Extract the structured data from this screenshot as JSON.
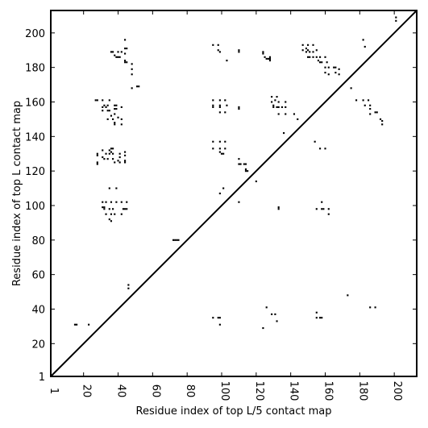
{
  "chart_data": {
    "type": "scatter",
    "title": "",
    "xlabel": "Residue index of top L/5 contact map",
    "ylabel": "Residue index of top L contact map",
    "xlim": [
      1,
      213
    ],
    "ylim": [
      1,
      213
    ],
    "xticks": [
      1,
      20,
      40,
      60,
      80,
      100,
      120,
      140,
      160,
      180,
      200
    ],
    "yticks": [
      1,
      20,
      40,
      60,
      80,
      100,
      120,
      140,
      160,
      180,
      200
    ],
    "xtick_labels": [
      "1",
      "20",
      "40",
      "60",
      "80",
      "100",
      "120",
      "140",
      "160",
      "180",
      "200"
    ],
    "ytick_labels": [
      "1",
      "20",
      "40",
      "60",
      "80",
      "100",
      "120",
      "140",
      "160",
      "180",
      "200"
    ],
    "grid": false,
    "legend": "none",
    "diagonal": {
      "from": [
        1,
        1
      ],
      "to": [
        213,
        213
      ]
    },
    "marker_color": "#000000",
    "series": [
      {
        "points": [
          [
            15,
            31
          ],
          [
            16,
            31
          ],
          [
            23,
            31
          ],
          [
            72,
            80
          ],
          [
            73,
            80
          ],
          [
            74,
            80
          ],
          [
            75,
            80
          ],
          [
            46,
            52
          ],
          [
            46,
            54
          ],
          [
            124,
            29
          ],
          [
            126,
            41
          ],
          [
            129,
            37
          ],
          [
            131,
            37
          ],
          [
            132,
            33
          ],
          [
            95,
            35
          ],
          [
            98,
            35
          ],
          [
            99,
            35
          ],
          [
            99,
            31
          ],
          [
            155,
            38
          ],
          [
            155,
            35
          ],
          [
            157,
            35
          ],
          [
            158,
            35
          ],
          [
            173,
            48
          ],
          [
            186,
            41
          ],
          [
            189,
            41
          ],
          [
            101,
            110
          ],
          [
            99,
            107
          ],
          [
            110,
            102
          ],
          [
            120,
            114
          ],
          [
            133,
            98
          ],
          [
            133,
            99
          ],
          [
            35,
            110
          ],
          [
            39,
            110
          ],
          [
            31,
            99
          ],
          [
            32,
            99
          ],
          [
            32,
            98
          ],
          [
            35,
            98
          ],
          [
            37,
            98
          ],
          [
            39,
            102
          ],
          [
            42,
            102
          ],
          [
            43,
            98
          ],
          [
            44,
            98
          ],
          [
            45,
            98
          ],
          [
            45,
            102
          ],
          [
            33,
            95
          ],
          [
            36,
            95
          ],
          [
            38,
            95
          ],
          [
            42,
            95
          ],
          [
            35,
            92
          ],
          [
            36,
            91
          ],
          [
            31,
            102
          ],
          [
            33,
            102
          ],
          [
            36,
            102
          ],
          [
            28,
            130
          ],
          [
            28,
            129
          ],
          [
            28,
            125
          ],
          [
            28,
            124
          ],
          [
            31,
            132
          ],
          [
            31,
            128
          ],
          [
            32,
            127
          ],
          [
            33,
            130
          ],
          [
            34,
            127
          ],
          [
            35,
            132
          ],
          [
            35,
            130
          ],
          [
            36,
            133
          ],
          [
            36,
            131
          ],
          [
            37,
            133
          ],
          [
            37,
            130
          ],
          [
            37,
            127
          ],
          [
            38,
            125
          ],
          [
            40,
            126
          ],
          [
            41,
            125
          ],
          [
            41,
            128
          ],
          [
            41,
            130
          ],
          [
            44,
            131
          ],
          [
            44,
            129
          ],
          [
            44,
            126
          ],
          [
            44,
            125
          ],
          [
            27,
            161
          ],
          [
            28,
            161
          ],
          [
            31,
            161
          ],
          [
            31,
            157
          ],
          [
            31,
            155
          ],
          [
            32,
            158
          ],
          [
            33,
            157
          ],
          [
            34,
            158
          ],
          [
            34,
            155
          ],
          [
            34,
            150
          ],
          [
            35,
            161
          ],
          [
            35,
            155
          ],
          [
            36,
            152
          ],
          [
            37,
            150
          ],
          [
            38,
            158
          ],
          [
            38,
            156
          ],
          [
            38,
            153
          ],
          [
            38,
            148
          ],
          [
            39,
            158
          ],
          [
            39,
            156
          ],
          [
            40,
            151
          ],
          [
            42,
            157
          ],
          [
            42,
            150
          ],
          [
            42,
            147
          ],
          [
            38,
            147
          ],
          [
            36,
            189
          ],
          [
            37,
            189
          ],
          [
            38,
            187
          ],
          [
            39,
            186
          ],
          [
            40,
            189
          ],
          [
            40,
            186
          ],
          [
            41,
            186
          ],
          [
            42,
            189
          ],
          [
            44,
            196
          ],
          [
            44,
            191
          ],
          [
            44,
            188
          ],
          [
            44,
            184
          ],
          [
            44,
            183
          ],
          [
            45,
            183
          ],
          [
            45,
            191
          ],
          [
            48,
            182
          ],
          [
            48,
            179
          ],
          [
            48,
            176
          ],
          [
            48,
            168
          ],
          [
            51,
            169
          ],
          [
            52,
            169
          ],
          [
            95,
            193
          ],
          [
            98,
            193
          ],
          [
            98,
            190
          ],
          [
            99,
            189
          ],
          [
            103,
            184
          ],
          [
            110,
            190
          ],
          [
            110,
            189
          ],
          [
            95,
            137
          ],
          [
            95,
            133
          ],
          [
            99,
            137
          ],
          [
            99,
            133
          ],
          [
            99,
            131
          ],
          [
            100,
            130
          ],
          [
            101,
            130
          ],
          [
            102,
            133
          ],
          [
            102,
            137
          ],
          [
            95,
            161
          ],
          [
            95,
            158
          ],
          [
            95,
            157
          ],
          [
            99,
            161
          ],
          [
            99,
            158
          ],
          [
            99,
            157
          ],
          [
            99,
            154
          ],
          [
            102,
            161
          ],
          [
            103,
            158
          ],
          [
            102,
            154
          ],
          [
            110,
            157
          ],
          [
            110,
            156
          ],
          [
            110,
            127
          ],
          [
            110,
            124
          ],
          [
            111,
            124
          ],
          [
            113,
            124
          ],
          [
            114,
            124
          ],
          [
            114,
            121
          ],
          [
            114,
            120
          ],
          [
            115,
            120
          ],
          [
            124,
            189
          ],
          [
            124,
            188
          ],
          [
            125,
            186
          ],
          [
            126,
            185
          ],
          [
            127,
            185
          ],
          [
            128,
            186
          ],
          [
            128,
            185
          ],
          [
            128,
            184
          ],
          [
            129,
            163
          ],
          [
            129,
            160
          ],
          [
            130,
            158
          ],
          [
            130,
            157
          ],
          [
            131,
            161
          ],
          [
            132,
            163
          ],
          [
            132,
            157
          ],
          [
            133,
            160
          ],
          [
            133,
            157
          ],
          [
            133,
            153
          ],
          [
            135,
            157
          ],
          [
            137,
            160
          ],
          [
            137,
            157
          ],
          [
            137,
            153
          ],
          [
            136,
            142
          ],
          [
            142,
            153
          ],
          [
            144,
            150
          ],
          [
            147,
            193
          ],
          [
            147,
            190
          ],
          [
            149,
            191
          ],
          [
            149,
            189
          ],
          [
            150,
            193
          ],
          [
            150,
            190
          ],
          [
            150,
            186
          ],
          [
            151,
            189
          ],
          [
            151,
            186
          ],
          [
            153,
            193
          ],
          [
            153,
            189
          ],
          [
            153,
            186
          ],
          [
            155,
            190
          ],
          [
            155,
            186
          ],
          [
            156,
            184
          ],
          [
            157,
            183
          ],
          [
            157,
            186
          ],
          [
            158,
            183
          ],
          [
            160,
            186
          ],
          [
            160,
            180
          ],
          [
            160,
            177
          ],
          [
            161,
            183
          ],
          [
            162,
            180
          ],
          [
            162,
            176
          ],
          [
            165,
            180
          ],
          [
            166,
            180
          ],
          [
            166,
            177
          ],
          [
            168,
            179
          ],
          [
            168,
            176
          ],
          [
            154,
            137
          ],
          [
            157,
            133
          ],
          [
            160,
            133
          ],
          [
            155,
            98
          ],
          [
            158,
            102
          ],
          [
            158,
            98
          ],
          [
            159,
            98
          ],
          [
            162,
            98
          ],
          [
            162,
            95
          ],
          [
            175,
            168
          ],
          [
            178,
            161
          ],
          [
            182,
            196
          ],
          [
            183,
            192
          ],
          [
            182,
            161
          ],
          [
            183,
            158
          ],
          [
            185,
            161
          ],
          [
            186,
            158
          ],
          [
            186,
            156
          ],
          [
            186,
            153
          ],
          [
            189,
            154
          ],
          [
            190,
            154
          ],
          [
            192,
            150
          ],
          [
            193,
            149
          ],
          [
            193,
            147
          ],
          [
            201,
            209
          ],
          [
            201,
            207
          ]
        ]
      }
    ]
  }
}
